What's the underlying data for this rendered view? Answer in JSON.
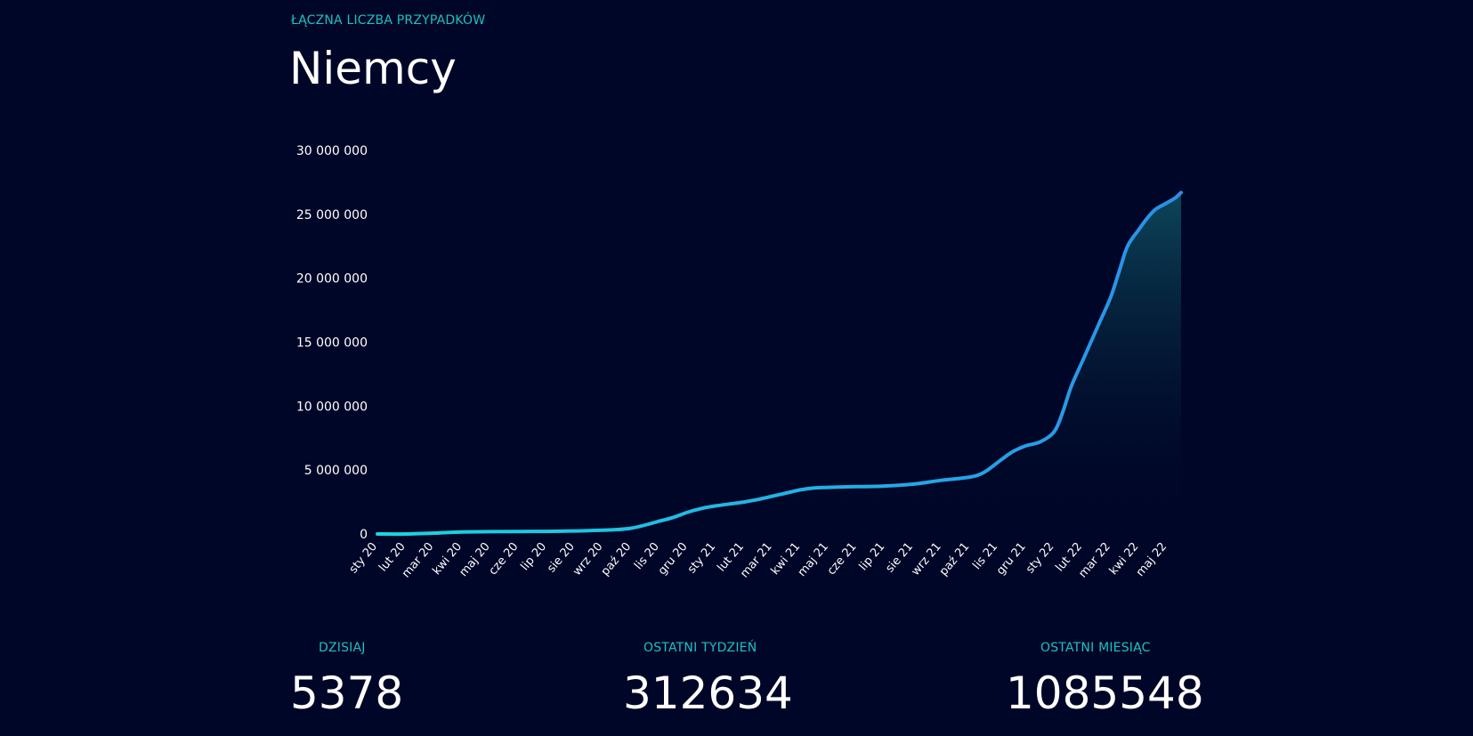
{
  "header": {
    "kicker": "ŁĄCZNA LICZBA PRZYPADKÓW",
    "title": "Niemcy"
  },
  "stats": [
    {
      "label": "DZISIAJ",
      "value": "5378"
    },
    {
      "label": "OSTATNI TYDZIEŃ",
      "value": "312634"
    },
    {
      "label": "OSTATNI MIESIĄC",
      "value": "1085548"
    }
  ],
  "colors": {
    "background": "#000627",
    "accent_text": "#19c2c2",
    "line_start": "#1ad6e0",
    "line_end": "#2a8fe8",
    "fill_top": "#0d4a5c"
  },
  "chart_data": {
    "type": "area",
    "ylim": [
      0,
      30000000
    ],
    "yticks": [
      0,
      5000000,
      10000000,
      15000000,
      20000000,
      25000000,
      30000000
    ],
    "ytick_labels": [
      "0",
      "5 000 000",
      "10 000 000",
      "15 000 000",
      "20 000 000",
      "25 000 000",
      "30 000 000"
    ],
    "xtick_labels": [
      "sty 20",
      "lut 20",
      "mar 20",
      "kwi 20",
      "maj 20",
      "cze 20",
      "lip 20",
      "sie 20",
      "wrz 20",
      "paź 20",
      "lis 20",
      "gru 20",
      "sty 21",
      "lut 21",
      "mar 21",
      "kwi 21",
      "maj 21",
      "cze 21",
      "lip 21",
      "sie 21",
      "wrz 21",
      "paź 21",
      "lis 21",
      "gru 21",
      "sty 22",
      "lut 22",
      "mar 22",
      "kwi 22",
      "maj 22"
    ],
    "grid": false,
    "series": [
      {
        "x": [
          0,
          1,
          2,
          3,
          4,
          5,
          6,
          7,
          8,
          9,
          10,
          10.5,
          11,
          11.5,
          12,
          12.5,
          13,
          13.5,
          14,
          14.5,
          15,
          15.5,
          16,
          16.5,
          17,
          18,
          19,
          20,
          21,
          21.5,
          22,
          22.5,
          23,
          23.5,
          24,
          24.3,
          24.6,
          25,
          25.3,
          25.6,
          26,
          26.3,
          26.6,
          27,
          27.3,
          27.6,
          28,
          28.3,
          28.5
        ],
        "y": [
          0,
          0,
          70000,
          160000,
          180000,
          195000,
          205000,
          240000,
          290000,
          450000,
          1000000,
          1300000,
          1700000,
          2000000,
          2200000,
          2350000,
          2500000,
          2700000,
          2950000,
          3200000,
          3450000,
          3600000,
          3650000,
          3680000,
          3700000,
          3750000,
          3900000,
          4200000,
          4450000,
          4800000,
          5600000,
          6400000,
          6900000,
          7200000,
          8000000,
          9500000,
          11500000,
          13500000,
          15000000,
          16500000,
          18500000,
          20500000,
          22500000,
          23800000,
          24700000,
          25400000,
          25900000,
          26300000,
          26700000
        ]
      }
    ]
  }
}
